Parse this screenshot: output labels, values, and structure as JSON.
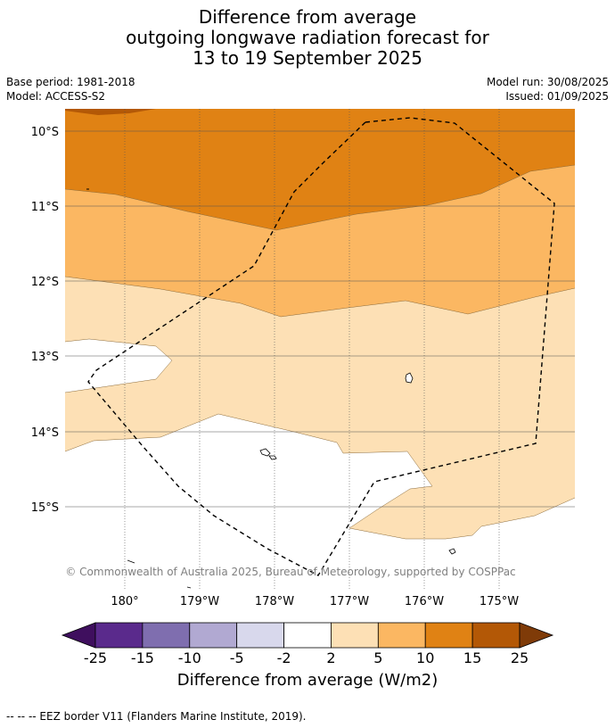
{
  "title_lines": [
    "Difference from average",
    "outgoing longwave radiation forecast for",
    "13 to 19 September 2025"
  ],
  "base_period": "Base period: 1981-2018",
  "model": "Model: ACCESS-S2",
  "model_run": "Model run: 30/08/2025",
  "issued": "Issued: 01/09/2025",
  "lat_labels": [
    "10°S",
    "11°S",
    "12°S",
    "13°S",
    "14°S",
    "15°S"
  ],
  "lon_labels": [
    "180°",
    "179°W",
    "178°W",
    "177°W",
    "176°W",
    "175°W"
  ],
  "copyright": "© Commonwealth of Australia 2025, Bureau of Meteorology, supported by COSPPac",
  "colorbar": {
    "ticks": [
      "-25",
      "-15",
      "-10",
      "-5",
      "-2",
      "2",
      "5",
      "10",
      "15",
      "25"
    ],
    "colors": [
      "#3f0f5e",
      "#5a2a8c",
      "#7f6eaf",
      "#b1a9d2",
      "#d8d8ec",
      "#ffffff",
      "#fde0b5",
      "#fbb762",
      "#e08214",
      "#b35806",
      "#7f3b08"
    ],
    "label": "Difference from average (W/m2)"
  },
  "footnote": "--  --  -- EEZ border V11 (Flanders Marine Institute, 2019)."
}
